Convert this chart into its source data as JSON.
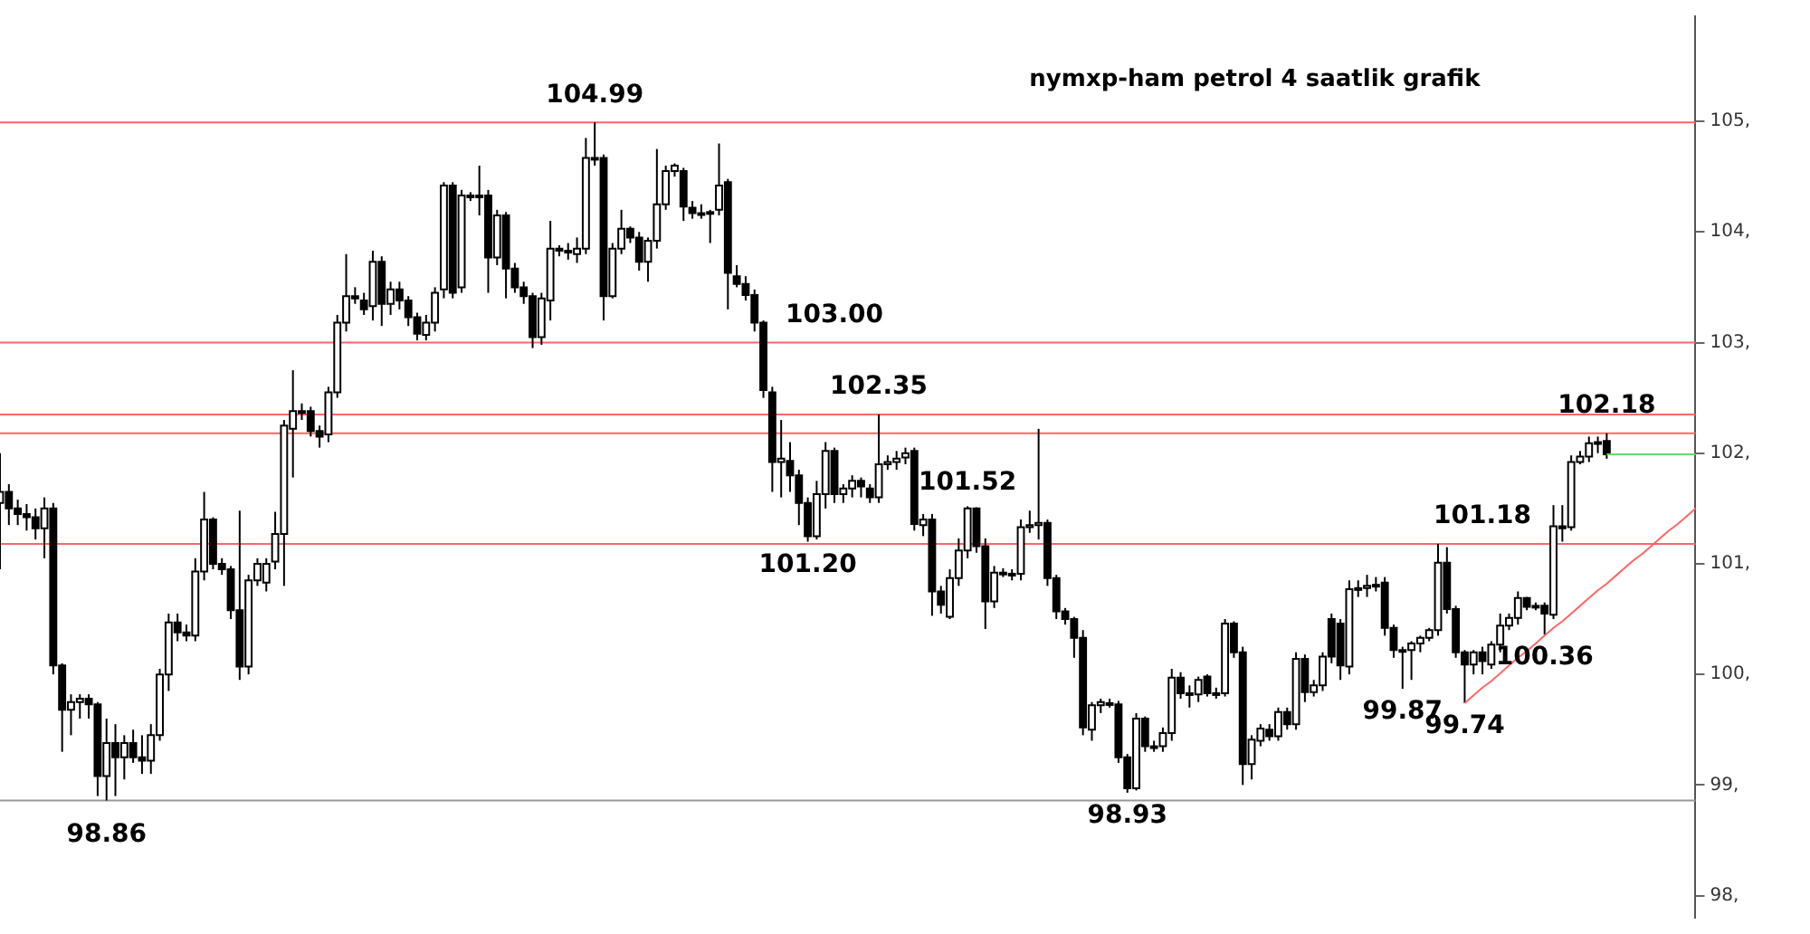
{
  "chart_data": {
    "type": "candlestick",
    "title": "nymxp-ham petrol 4 saatlik grafik",
    "categories": [
      null,
      null,
      null,
      null,
      null,
      null,
      null,
      null,
      null,
      null,
      null,
      null,
      null,
      null,
      null,
      null,
      null,
      null,
      null,
      null,
      null,
      null,
      null,
      null,
      null,
      null,
      null,
      null,
      null,
      null,
      null,
      null,
      null,
      null,
      null,
      null,
      null,
      null,
      null,
      null,
      null,
      null,
      null,
      null,
      null,
      null,
      null,
      null,
      null,
      null,
      null,
      null,
      null,
      null,
      null,
      null,
      null,
      null,
      null,
      null,
      null,
      null,
      null,
      null,
      null,
      null,
      null,
      null,
      null,
      null,
      null,
      null,
      null,
      null,
      null,
      null,
      null,
      null,
      null,
      null,
      null,
      null,
      null,
      null,
      null,
      null,
      null,
      null,
      null,
      null,
      null,
      null,
      null,
      null,
      null,
      null,
      null,
      null,
      null,
      null,
      null,
      null,
      null,
      null,
      null,
      null,
      null,
      null,
      null,
      null,
      null,
      null,
      null,
      null,
      null,
      null,
      null,
      null,
      null,
      null,
      null,
      null,
      null,
      null,
      null,
      null,
      null,
      null,
      null,
      null,
      null,
      null,
      null,
      null,
      null,
      null,
      null,
      null,
      null,
      null,
      null,
      null,
      null,
      null,
      null,
      null,
      null,
      null,
      null,
      null,
      null,
      null,
      null,
      null,
      null,
      null,
      null,
      null,
      null,
      null,
      null,
      null,
      null,
      null,
      null,
      null,
      null,
      null,
      null,
      null,
      null,
      null,
      null,
      null,
      null,
      null,
      null,
      null,
      null,
      null,
      null,
      null,
      null,
      null,
      null,
      null,
      null,
      null,
      null,
      null,
      null,
      null
    ],
    "ylim": [
      97.8,
      105.95
    ],
    "yticks": [
      {
        "value": 98,
        "label": "98,"
      },
      {
        "value": 99,
        "label": "99,"
      },
      {
        "value": 100,
        "label": "100,"
      },
      {
        "value": 101,
        "label": "101,"
      },
      {
        "value": 102,
        "label": "102,"
      },
      {
        "value": 103,
        "label": "103,"
      },
      {
        "value": 104,
        "label": "104,"
      },
      {
        "value": 105,
        "label": "105,"
      }
    ],
    "tick_labels": "y",
    "grid": false,
    "legend": false,
    "ohlc": [
      [
        101.55,
        102.0,
        100.95,
        101.65
      ],
      [
        101.65,
        101.72,
        101.35,
        101.5
      ],
      [
        101.5,
        101.58,
        101.35,
        101.45
      ],
      [
        101.45,
        101.54,
        101.3,
        101.42
      ],
      [
        101.42,
        101.5,
        101.22,
        101.32
      ],
      [
        101.32,
        101.6,
        101.05,
        101.5
      ],
      [
        101.5,
        101.55,
        100.0,
        100.08
      ],
      [
        100.08,
        100.1,
        99.3,
        99.68
      ],
      [
        99.68,
        99.82,
        99.45,
        99.75
      ],
      [
        99.75,
        99.82,
        99.6,
        99.78
      ],
      [
        99.78,
        99.82,
        99.6,
        99.73
      ],
      [
        99.73,
        99.75,
        98.9,
        99.08
      ],
      [
        99.08,
        99.6,
        98.86,
        99.38
      ],
      [
        99.38,
        99.55,
        98.9,
        99.25
      ],
      [
        99.25,
        99.45,
        99.05,
        99.38
      ],
      [
        99.38,
        99.5,
        99.2,
        99.25
      ],
      [
        99.25,
        99.45,
        99.1,
        99.22
      ],
      [
        99.22,
        99.55,
        99.1,
        99.45
      ],
      [
        99.45,
        100.05,
        99.4,
        100.0
      ],
      [
        100.0,
        100.55,
        99.85,
        100.47
      ],
      [
        100.47,
        100.55,
        100.3,
        100.38
      ],
      [
        100.38,
        100.45,
        100.3,
        100.35
      ],
      [
        100.35,
        101.05,
        100.3,
        100.93
      ],
      [
        100.93,
        101.65,
        100.85,
        101.4
      ],
      [
        101.4,
        101.42,
        100.95,
        101.0
      ],
      [
        101.0,
        101.05,
        100.9,
        100.95
      ],
      [
        100.95,
        100.98,
        100.5,
        100.58
      ],
      [
        100.58,
        101.48,
        99.95,
        100.07
      ],
      [
        100.07,
        100.9,
        100.0,
        100.85
      ],
      [
        100.85,
        101.05,
        100.8,
        101.0
      ],
      [
        100.83,
        101.05,
        100.75,
        101.0
      ],
      [
        101.02,
        101.47,
        100.95,
        101.27
      ],
      [
        101.27,
        102.3,
        100.8,
        102.25
      ],
      [
        102.22,
        102.75,
        101.78,
        102.38
      ],
      [
        102.38,
        102.45,
        102.3,
        102.38
      ],
      [
        102.38,
        102.42,
        102.15,
        102.2
      ],
      [
        102.2,
        102.25,
        102.05,
        102.15
      ],
      [
        102.17,
        102.6,
        102.1,
        102.55
      ],
      [
        102.55,
        103.25,
        102.5,
        103.18
      ],
      [
        103.18,
        103.8,
        103.1,
        103.42
      ],
      [
        103.42,
        103.5,
        103.35,
        103.4
      ],
      [
        103.38,
        103.45,
        103.25,
        103.3
      ],
      [
        103.33,
        103.83,
        103.2,
        103.73
      ],
      [
        103.73,
        103.78,
        103.15,
        103.35
      ],
      [
        103.35,
        103.55,
        103.25,
        103.48
      ],
      [
        103.48,
        103.55,
        103.3,
        103.38
      ],
      [
        103.38,
        103.42,
        103.15,
        103.23
      ],
      [
        103.23,
        103.27,
        103.02,
        103.08
      ],
      [
        103.07,
        103.25,
        103.02,
        103.18
      ],
      [
        103.18,
        103.5,
        103.1,
        103.45
      ],
      [
        103.48,
        104.45,
        103.4,
        104.42
      ],
      [
        104.42,
        104.45,
        103.4,
        103.45
      ],
      [
        103.5,
        104.38,
        103.45,
        104.33
      ],
      [
        104.33,
        104.36,
        104.28,
        104.33
      ],
      [
        104.33,
        104.6,
        104.15,
        104.33
      ],
      [
        104.33,
        104.38,
        103.45,
        103.77
      ],
      [
        103.77,
        104.2,
        103.7,
        104.15
      ],
      [
        104.15,
        104.18,
        103.4,
        103.67
      ],
      [
        103.67,
        103.72,
        103.45,
        103.5
      ],
      [
        103.5,
        103.55,
        103.35,
        103.42
      ],
      [
        103.42,
        103.45,
        102.95,
        103.05
      ],
      [
        103.05,
        103.45,
        102.98,
        103.4
      ],
      [
        103.38,
        104.1,
        103.2,
        103.85
      ],
      [
        103.85,
        103.88,
        103.78,
        103.83
      ],
      [
        103.83,
        103.9,
        103.75,
        103.82
      ],
      [
        103.8,
        103.95,
        103.72,
        103.85
      ],
      [
        103.85,
        104.85,
        103.8,
        104.67
      ],
      [
        104.67,
        104.99,
        104.6,
        104.67
      ],
      [
        104.67,
        104.7,
        103.2,
        103.42
      ],
      [
        103.42,
        103.9,
        103.4,
        103.85
      ],
      [
        103.85,
        104.2,
        103.8,
        104.03
      ],
      [
        104.03,
        104.05,
        103.9,
        103.95
      ],
      [
        103.95,
        104.0,
        103.65,
        103.73
      ],
      [
        103.73,
        103.95,
        103.55,
        103.92
      ],
      [
        103.92,
        104.75,
        103.85,
        104.25
      ],
      [
        104.25,
        104.6,
        104.2,
        104.55
      ],
      [
        104.55,
        104.62,
        104.5,
        104.6
      ],
      [
        104.55,
        104.58,
        104.1,
        104.23
      ],
      [
        104.22,
        104.28,
        104.12,
        104.17
      ],
      [
        104.17,
        104.25,
        104.12,
        104.17
      ],
      [
        104.17,
        104.2,
        103.9,
        104.18
      ],
      [
        104.2,
        104.8,
        104.15,
        104.42
      ],
      [
        104.45,
        104.48,
        103.3,
        103.63
      ],
      [
        103.6,
        103.7,
        103.5,
        103.53
      ],
      [
        103.53,
        103.6,
        103.38,
        103.43
      ],
      [
        103.43,
        103.48,
        103.1,
        103.18
      ],
      [
        103.18,
        103.2,
        102.5,
        102.57
      ],
      [
        102.55,
        102.6,
        101.65,
        101.92
      ],
      [
        101.92,
        102.3,
        101.6,
        101.95
      ],
      [
        101.93,
        102.1,
        101.65,
        101.8
      ],
      [
        101.8,
        101.85,
        101.35,
        101.55
      ],
      [
        101.55,
        101.6,
        101.2,
        101.25
      ],
      [
        101.25,
        101.75,
        101.22,
        101.63
      ],
      [
        101.63,
        102.1,
        101.5,
        102.02
      ],
      [
        102.02,
        102.05,
        101.55,
        101.63
      ],
      [
        101.63,
        101.72,
        101.55,
        101.68
      ],
      [
        101.68,
        101.8,
        101.6,
        101.75
      ],
      [
        101.75,
        101.78,
        101.6,
        101.7
      ],
      [
        101.68,
        101.72,
        101.55,
        101.6
      ],
      [
        101.6,
        102.35,
        101.55,
        101.9
      ],
      [
        101.9,
        101.98,
        101.85,
        101.92
      ],
      [
        101.92,
        102.02,
        101.85,
        101.95
      ],
      [
        101.96,
        102.05,
        101.9,
        102.0
      ],
      [
        102.02,
        102.05,
        101.3,
        101.36
      ],
      [
        101.35,
        101.45,
        101.25,
        101.4
      ],
      [
        101.4,
        101.45,
        100.53,
        100.75
      ],
      [
        100.75,
        100.8,
        100.55,
        100.63
      ],
      [
        100.52,
        100.95,
        100.5,
        100.87
      ],
      [
        100.87,
        101.23,
        100.8,
        101.12
      ],
      [
        101.12,
        101.52,
        101.05,
        101.5
      ],
      [
        101.5,
        101.51,
        101.1,
        101.16
      ],
      [
        101.16,
        101.23,
        100.41,
        100.66
      ],
      [
        100.66,
        100.98,
        100.6,
        100.92
      ],
      [
        100.92,
        100.96,
        100.88,
        100.91
      ],
      [
        100.91,
        100.95,
        100.85,
        100.91
      ],
      [
        100.91,
        101.4,
        100.85,
        101.33
      ],
      [
        101.33,
        101.48,
        101.28,
        101.35
      ],
      [
        101.35,
        102.22,
        101.22,
        101.37
      ],
      [
        101.37,
        101.4,
        100.8,
        100.87
      ],
      [
        100.87,
        100.9,
        100.5,
        100.57
      ],
      [
        100.57,
        100.6,
        100.45,
        100.5
      ],
      [
        100.5,
        100.52,
        100.15,
        100.33
      ],
      [
        100.33,
        100.4,
        99.45,
        99.52
      ],
      [
        99.5,
        99.75,
        99.4,
        99.72
      ],
      [
        99.72,
        99.78,
        99.65,
        99.75
      ],
      [
        99.74,
        99.78,
        99.7,
        99.74
      ],
      [
        99.73,
        99.76,
        99.2,
        99.25
      ],
      [
        99.25,
        99.28,
        98.93,
        98.97
      ],
      [
        98.97,
        99.65,
        98.95,
        99.6
      ],
      [
        99.6,
        99.62,
        99.3,
        99.35
      ],
      [
        99.35,
        99.4,
        99.3,
        99.35
      ],
      [
        99.35,
        99.52,
        99.3,
        99.47
      ],
      [
        99.47,
        100.05,
        99.4,
        99.97
      ],
      [
        99.97,
        100.02,
        99.78,
        99.83
      ],
      [
        99.83,
        99.9,
        99.7,
        99.82
      ],
      [
        99.82,
        99.98,
        99.75,
        99.95
      ],
      [
        99.98,
        100.0,
        99.8,
        99.83
      ],
      [
        99.83,
        99.88,
        99.78,
        99.83
      ],
      [
        99.83,
        100.5,
        99.8,
        100.46
      ],
      [
        100.46,
        100.48,
        100.15,
        100.2
      ],
      [
        100.2,
        100.25,
        99.0,
        99.19
      ],
      [
        99.19,
        99.45,
        99.05,
        99.41
      ],
      [
        99.4,
        99.55,
        99.35,
        99.51
      ],
      [
        99.5,
        99.55,
        99.4,
        99.44
      ],
      [
        99.44,
        99.7,
        99.4,
        99.66
      ],
      [
        99.66,
        99.7,
        99.5,
        99.55
      ],
      [
        99.55,
        100.2,
        99.5,
        100.14
      ],
      [
        100.14,
        100.18,
        99.75,
        99.84
      ],
      [
        99.84,
        99.95,
        99.8,
        99.9
      ],
      [
        99.9,
        100.2,
        99.85,
        100.16
      ],
      [
        100.5,
        100.55,
        100.1,
        100.16
      ],
      [
        100.46,
        100.5,
        99.95,
        100.08
      ],
      [
        100.07,
        100.85,
        100.0,
        100.77
      ],
      [
        100.77,
        100.85,
        100.7,
        100.78
      ],
      [
        100.78,
        100.9,
        100.7,
        100.8
      ],
      [
        100.8,
        100.88,
        100.75,
        100.81
      ],
      [
        100.83,
        100.88,
        100.35,
        100.42
      ],
      [
        100.42,
        100.45,
        100.15,
        100.22
      ],
      [
        100.22,
        100.25,
        99.87,
        100.22
      ],
      [
        100.22,
        100.3,
        99.95,
        100.28
      ],
      [
        100.28,
        100.35,
        100.2,
        100.33
      ],
      [
        100.33,
        100.42,
        100.3,
        100.4
      ],
      [
        100.4,
        101.18,
        100.35,
        101.01
      ],
      [
        101.01,
        101.15,
        100.55,
        100.59
      ],
      [
        100.59,
        100.62,
        100.15,
        100.2
      ],
      [
        100.2,
        100.22,
        99.74,
        100.09
      ],
      [
        100.09,
        100.22,
        100.0,
        100.2
      ],
      [
        100.2,
        100.25,
        100.0,
        100.12
      ],
      [
        100.09,
        100.3,
        100.05,
        100.27
      ],
      [
        100.27,
        100.55,
        100.2,
        100.44
      ],
      [
        100.44,
        100.55,
        100.4,
        100.51
      ],
      [
        100.51,
        100.75,
        100.45,
        100.69
      ],
      [
        100.69,
        100.7,
        100.58,
        100.61
      ],
      [
        100.62,
        100.65,
        100.58,
        100.62
      ],
      [
        100.62,
        100.65,
        100.36,
        100.55
      ],
      [
        100.54,
        101.53,
        100.5,
        101.34
      ],
      [
        101.34,
        101.53,
        101.2,
        101.32
      ],
      [
        101.33,
        101.98,
        101.3,
        101.92
      ],
      [
        101.92,
        102.02,
        101.9,
        101.97
      ],
      [
        101.97,
        102.15,
        101.92,
        102.09
      ],
      [
        102.09,
        102.15,
        102.0,
        102.1
      ],
      [
        102.11,
        102.18,
        101.95,
        101.99
      ],
      null,
      null,
      null,
      null,
      null,
      null,
      null,
      null,
      null,
      null
    ],
    "series": [
      {
        "type": "line",
        "color": "#ff6666",
        "values": [
          null,
          null,
          null,
          null,
          null,
          null,
          null,
          null,
          null,
          null,
          null,
          null,
          null,
          null,
          null,
          null,
          null,
          null,
          null,
          null,
          null,
          null,
          null,
          null,
          null,
          null,
          null,
          null,
          null,
          null,
          null,
          null,
          null,
          null,
          null,
          null,
          null,
          null,
          null,
          null,
          null,
          null,
          null,
          null,
          null,
          null,
          null,
          null,
          null,
          null,
          null,
          null,
          null,
          null,
          null,
          null,
          null,
          null,
          null,
          null,
          null,
          null,
          null,
          null,
          null,
          null,
          null,
          null,
          null,
          null,
          null,
          null,
          null,
          null,
          null,
          null,
          null,
          null,
          null,
          null,
          null,
          null,
          null,
          null,
          null,
          null,
          null,
          null,
          null,
          null,
          null,
          null,
          null,
          null,
          null,
          null,
          null,
          null,
          null,
          null,
          null,
          null,
          null,
          null,
          null,
          null,
          null,
          null,
          null,
          null,
          null,
          null,
          null,
          null,
          null,
          null,
          null,
          null,
          null,
          null,
          null,
          null,
          null,
          null,
          null,
          null,
          null,
          null,
          null,
          null,
          null,
          null,
          null,
          null,
          null,
          null,
          null,
          null,
          null,
          null,
          null,
          null,
          null,
          null,
          null,
          null,
          null,
          null,
          null,
          null,
          null,
          null,
          null,
          null,
          null,
          null,
          null,
          null,
          null,
          null,
          null,
          null,
          null,
          null,
          null,
          99.74,
          99.81,
          99.88,
          99.94,
          100.01,
          100.08,
          100.15,
          100.21,
          100.28,
          100.35,
          100.42,
          100.48,
          100.55,
          100.62,
          100.69,
          100.76,
          100.82,
          100.89,
          100.96,
          101.03,
          101.09,
          101.16,
          101.23,
          101.3,
          101.36,
          101.43,
          101.5
        ]
      },
      {
        "type": "line",
        "color": "#66dd66",
        "values": [
          null,
          null,
          null,
          null,
          null,
          null,
          null,
          null,
          null,
          null,
          null,
          null,
          null,
          null,
          null,
          null,
          null,
          null,
          null,
          null,
          null,
          null,
          null,
          null,
          null,
          null,
          null,
          null,
          null,
          null,
          null,
          null,
          null,
          null,
          null,
          null,
          null,
          null,
          null,
          null,
          null,
          null,
          null,
          null,
          null,
          null,
          null,
          null,
          null,
          null,
          null,
          null,
          null,
          null,
          null,
          null,
          null,
          null,
          null,
          null,
          null,
          null,
          null,
          null,
          null,
          null,
          null,
          null,
          null,
          null,
          null,
          null,
          null,
          null,
          null,
          null,
          null,
          null,
          null,
          null,
          null,
          null,
          null,
          null,
          null,
          null,
          null,
          null,
          null,
          null,
          null,
          null,
          null,
          null,
          null,
          null,
          null,
          null,
          null,
          null,
          null,
          null,
          null,
          null,
          null,
          null,
          null,
          null,
          null,
          null,
          null,
          null,
          null,
          null,
          null,
          null,
          null,
          null,
          null,
          null,
          null,
          null,
          null,
          null,
          null,
          null,
          null,
          null,
          null,
          null,
          null,
          null,
          null,
          null,
          null,
          null,
          null,
          null,
          null,
          null,
          null,
          null,
          null,
          null,
          null,
          null,
          null,
          null,
          null,
          null,
          null,
          null,
          null,
          null,
          null,
          null,
          null,
          null,
          null,
          null,
          null,
          null,
          null,
          null,
          null,
          null,
          null,
          null,
          null,
          null,
          null,
          null,
          null,
          null,
          null,
          null,
          null,
          null,
          null,
          null,
          null,
          101.99,
          101.99,
          101.99,
          101.99,
          101.99,
          101.99,
          101.99,
          101.99,
          101.99,
          101.99,
          101.99
        ]
      }
    ],
    "ref_lines": [
      {
        "axis": "y",
        "value": 104.99,
        "label": "104.99",
        "color": "#ff6666"
      },
      {
        "axis": "y",
        "value": 103.0,
        "label": "103.00",
        "color": "#ff6666"
      },
      {
        "axis": "y",
        "value": 102.35,
        "label": "102.35",
        "color": "#ff6666"
      },
      {
        "axis": "y",
        "value": 102.18,
        "label": "102.18",
        "color": "#ff6666"
      },
      {
        "axis": "y",
        "value": 101.18,
        "label": "101.18",
        "color": "#ff6666"
      },
      {
        "axis": "y",
        "value": 98.86,
        "label": "98.86",
        "color": "#999999"
      }
    ],
    "annotations": [
      {
        "text": "101.20",
        "y": 101.2
      },
      {
        "text": "101.52",
        "y": 101.52
      },
      {
        "text": "98.93",
        "y": 98.93
      },
      {
        "text": "99.87",
        "y": 99.87
      },
      {
        "text": "99.74",
        "y": 99.74
      },
      {
        "text": "100.36",
        "y": 100.36
      }
    ]
  }
}
